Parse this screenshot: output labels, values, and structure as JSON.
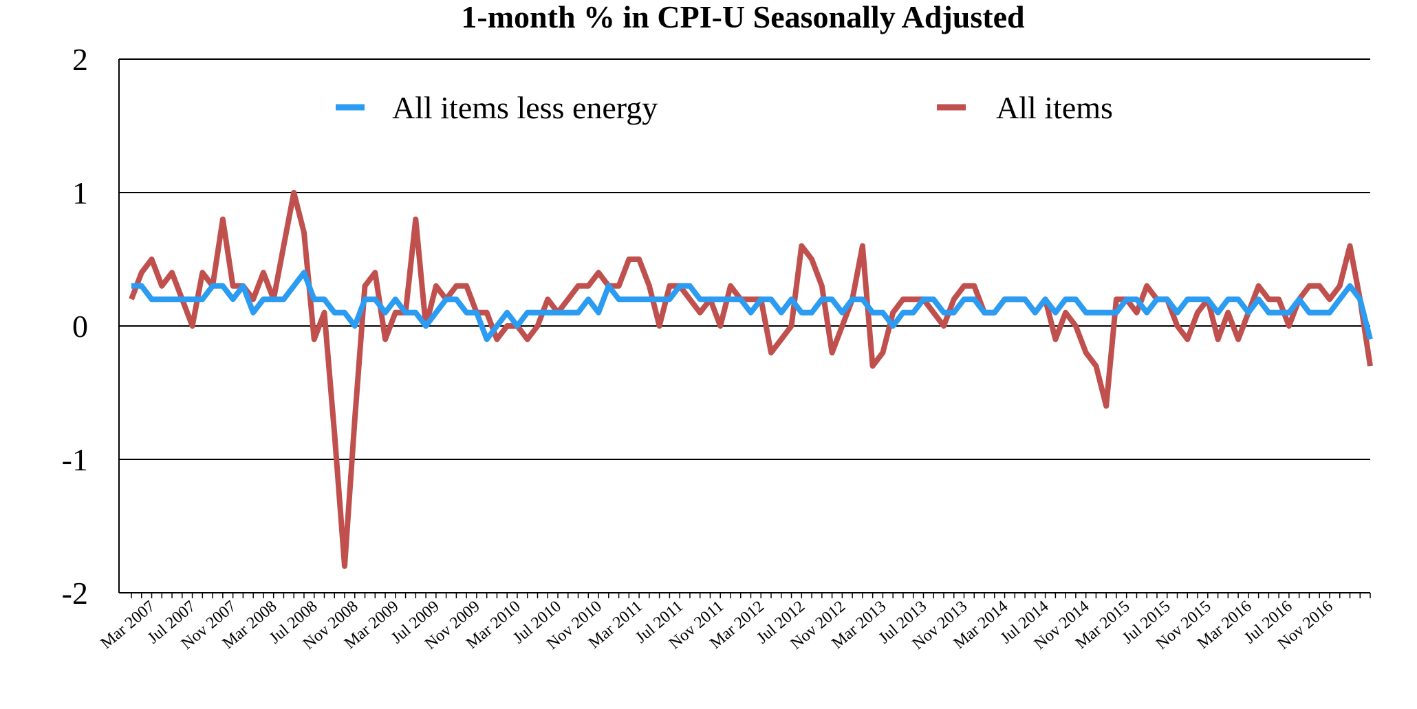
{
  "chart_data": {
    "type": "line",
    "title": "1-month % in CPI-U Seasonally Adjusted",
    "xlabel": "",
    "ylabel": "",
    "ylim": [
      -2,
      2
    ],
    "yticks": [
      "2",
      "1",
      "0",
      "-1",
      "-2"
    ],
    "grid": true,
    "legend_position": "top",
    "x_start": "Jan 2007",
    "x_end": "Dec 2016",
    "x_tick_labels": [
      "Mar 2007",
      "Jul 2007",
      "Nov 2007",
      "Mar 2008",
      "Jul 2008",
      "Nov 2008",
      "Mar 2009",
      "Jul 2009",
      "Nov 2009",
      "Mar 2010",
      "Jul 2010",
      "Nov 2010",
      "Mar 2011",
      "Jul 2011",
      "Nov 2011",
      "Mar 2012",
      "Jul 2012",
      "Nov 2012",
      "Mar 2013",
      "Jul 2013",
      "Nov 2013",
      "Mar 2014",
      "Jul 2014",
      "Nov 2014",
      "Mar 2015",
      "Jul 2015",
      "Nov 2015",
      "Mar 2016",
      "Jul 2016",
      "Nov 2016"
    ],
    "series": [
      {
        "name": "All items less energy",
        "color": "#2b9cf2",
        "values": [
          0.3,
          0.3,
          0.2,
          0.2,
          0.2,
          0.2,
          0.2,
          0.2,
          0.3,
          0.3,
          0.2,
          0.3,
          0.1,
          0.2,
          0.2,
          0.2,
          0.3,
          0.4,
          0.2,
          0.2,
          0.1,
          0.1,
          0.0,
          0.2,
          0.2,
          0.1,
          0.2,
          0.1,
          0.1,
          0.0,
          0.1,
          0.2,
          0.2,
          0.1,
          0.1,
          -0.1,
          0.0,
          0.1,
          0.0,
          0.1,
          0.1,
          0.1,
          0.1,
          0.1,
          0.1,
          0.2,
          0.1,
          0.3,
          0.2,
          0.2,
          0.2,
          0.2,
          0.2,
          0.2,
          0.3,
          0.3,
          0.2,
          0.2,
          0.2,
          0.2,
          0.2,
          0.1,
          0.2,
          0.2,
          0.1,
          0.2,
          0.1,
          0.1,
          0.2,
          0.2,
          0.1,
          0.2,
          0.2,
          0.1,
          0.1,
          0.0,
          0.1,
          0.1,
          0.2,
          0.2,
          0.1,
          0.1,
          0.2,
          0.2,
          0.1,
          0.1,
          0.2,
          0.2,
          0.2,
          0.1,
          0.2,
          0.1,
          0.2,
          0.2,
          0.1,
          0.1,
          0.1,
          0.1,
          0.2,
          0.2,
          0.1,
          0.2,
          0.2,
          0.1,
          0.2,
          0.2,
          0.2,
          0.1,
          0.2,
          0.2,
          0.1,
          0.2,
          0.1,
          0.1,
          0.1,
          0.2,
          0.1,
          0.1,
          0.1,
          0.2,
          0.3,
          0.2,
          -0.1
        ]
      },
      {
        "name": "All items",
        "color": "#c0504d",
        "values": [
          0.2,
          0.4,
          0.5,
          0.3,
          0.4,
          0.2,
          0.0,
          0.4,
          0.3,
          0.8,
          0.3,
          0.3,
          0.2,
          0.4,
          0.2,
          0.6,
          1.0,
          0.7,
          -0.1,
          0.1,
          -0.8,
          -1.8,
          -0.7,
          0.3,
          0.4,
          -0.1,
          0.1,
          0.1,
          0.8,
          0.0,
          0.3,
          0.2,
          0.3,
          0.3,
          0.1,
          0.1,
          -0.1,
          0.0,
          0.0,
          -0.1,
          0.0,
          0.2,
          0.1,
          0.2,
          0.3,
          0.3,
          0.4,
          0.3,
          0.3,
          0.5,
          0.5,
          0.3,
          0.0,
          0.3,
          0.3,
          0.2,
          0.1,
          0.2,
          0.0,
          0.3,
          0.2,
          0.2,
          0.2,
          -0.2,
          -0.1,
          0.0,
          0.6,
          0.5,
          0.3,
          -0.2,
          0.0,
          0.2,
          0.6,
          -0.3,
          -0.2,
          0.1,
          0.2,
          0.2,
          0.2,
          0.1,
          0.0,
          0.2,
          0.3,
          0.3,
          0.1,
          0.1,
          0.2,
          0.2,
          0.2,
          0.1,
          0.2,
          -0.1,
          0.1,
          0.0,
          -0.2,
          -0.3,
          -0.6,
          0.2,
          0.2,
          0.1,
          0.3,
          0.2,
          0.2,
          0.0,
          -0.1,
          0.1,
          0.2,
          -0.1,
          0.1,
          -0.1,
          0.1,
          0.3,
          0.2,
          0.2,
          0.0,
          0.2,
          0.3,
          0.3,
          0.2,
          0.3,
          0.6,
          0.2,
          -0.3
        ]
      }
    ]
  }
}
